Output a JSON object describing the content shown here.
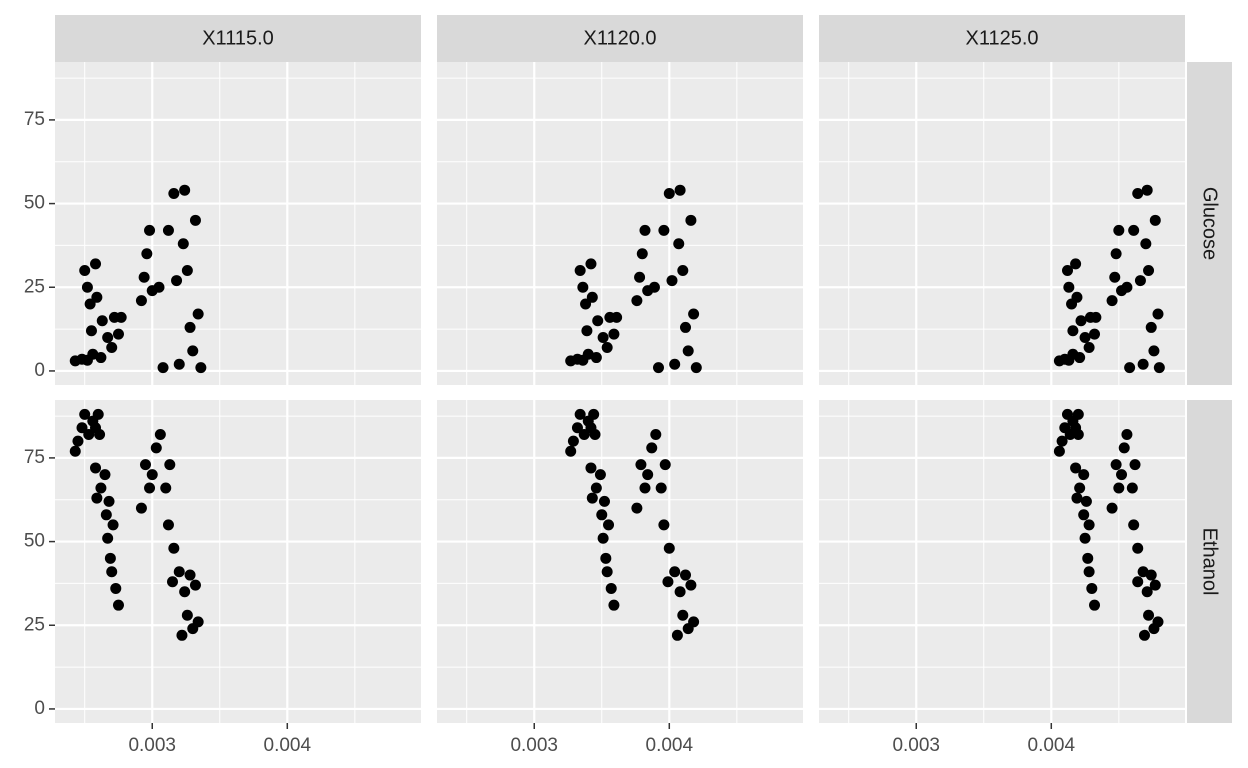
{
  "chart_data": {
    "type": "scatter",
    "col_labels": [
      "X1115.0",
      "X1120.0",
      "X1125.0"
    ],
    "row_labels": [
      "Glucose",
      "Ethanol"
    ],
    "color": "#000000",
    "xlim": [
      0.00228,
      0.00499
    ],
    "xticks": [
      0.003,
      0.004
    ],
    "xminor": [
      0.0025,
      0.0035,
      0.0045
    ],
    "ylim": [
      -4.2,
      92.3
    ],
    "yticks": [
      0,
      25,
      50,
      75
    ],
    "yminor": [
      12.5,
      37.5,
      62.5,
      87.5
    ],
    "grid": true,
    "panels": [
      [
        {
          "x": [
            0.00243,
            0.00248,
            0.00252,
            0.0025,
            0.00252,
            0.00254,
            0.00255,
            0.00256,
            0.00258,
            0.00259,
            0.00262,
            0.00263,
            0.00267,
            0.0027,
            0.00272,
            0.00275,
            0.00277,
            0.00292,
            0.00294,
            0.00296,
            0.00298,
            0.003,
            0.00305,
            0.00308,
            0.00312,
            0.00316,
            0.00318,
            0.0032,
            0.00323,
            0.00324,
            0.00326,
            0.00328,
            0.0033,
            0.00332,
            0.00334,
            0.00336
          ],
          "values": [
            3,
            3.5,
            3.2,
            30,
            25,
            20,
            12,
            5,
            32,
            22,
            4,
            15,
            10,
            7,
            16,
            11,
            16,
            21,
            28,
            35,
            42,
            24,
            25,
            1,
            42,
            53,
            27,
            2,
            38,
            54,
            30,
            13,
            6,
            45,
            17,
            1
          ]
        },
        {
          "x": [
            0.00327,
            0.00332,
            0.00336,
            0.00334,
            0.00336,
            0.00338,
            0.00339,
            0.0034,
            0.00342,
            0.00343,
            0.00346,
            0.00347,
            0.00351,
            0.00354,
            0.00356,
            0.00359,
            0.00361,
            0.00376,
            0.00378,
            0.0038,
            0.00382,
            0.00384,
            0.00389,
            0.00392,
            0.00396,
            0.004,
            0.00402,
            0.00404,
            0.00407,
            0.00408,
            0.0041,
            0.00412,
            0.00414,
            0.00416,
            0.00418,
            0.0042
          ],
          "values": [
            3,
            3.5,
            3.2,
            30,
            25,
            20,
            12,
            5,
            32,
            22,
            4,
            15,
            10,
            7,
            16,
            11,
            16,
            21,
            28,
            35,
            42,
            24,
            25,
            1,
            42,
            53,
            27,
            2,
            38,
            54,
            30,
            13,
            6,
            45,
            17,
            1
          ]
        },
        {
          "x": [
            0.00406,
            0.0041,
            0.00413,
            0.00412,
            0.00413,
            0.00415,
            0.00416,
            0.00416,
            0.00418,
            0.00419,
            0.00421,
            0.00422,
            0.00425,
            0.00428,
            0.00429,
            0.00432,
            0.00433,
            0.00445,
            0.00447,
            0.00448,
            0.0045,
            0.00452,
            0.00456,
            0.00458,
            0.00461,
            0.00464,
            0.00466,
            0.00468,
            0.0047,
            0.00471,
            0.00472,
            0.00474,
            0.00476,
            0.00477,
            0.00479,
            0.0048
          ],
          "values": [
            3,
            3.5,
            3.2,
            30,
            25,
            20,
            12,
            5,
            32,
            22,
            4,
            15,
            10,
            7,
            16,
            11,
            16,
            21,
            28,
            35,
            42,
            24,
            25,
            1,
            42,
            53,
            27,
            2,
            38,
            54,
            30,
            13,
            6,
            45,
            17,
            1
          ]
        }
      ],
      [
        {
          "x": [
            0.00243,
            0.00245,
            0.00248,
            0.0025,
            0.00253,
            0.00256,
            0.00258,
            0.0026,
            0.00261,
            0.00258,
            0.00259,
            0.00262,
            0.00265,
            0.00266,
            0.00267,
            0.00268,
            0.00269,
            0.0027,
            0.00271,
            0.00273,
            0.00275,
            0.00292,
            0.00295,
            0.00298,
            0.003,
            0.00303,
            0.00306,
            0.0031,
            0.00313,
            0.00312,
            0.00315,
            0.00316,
            0.0032,
            0.00322,
            0.00324,
            0.00326,
            0.00328,
            0.0033,
            0.00332,
            0.00334
          ],
          "values": [
            77,
            80,
            84,
            88,
            82,
            86,
            84,
            88,
            82,
            72,
            63,
            66,
            70,
            58,
            51,
            62,
            45,
            41,
            55,
            36,
            31,
            60,
            73,
            66,
            70,
            78,
            82,
            66,
            73,
            55,
            38,
            48,
            41,
            22,
            35,
            28,
            40,
            24,
            37,
            26
          ]
        },
        {
          "x": [
            0.00327,
            0.00329,
            0.00332,
            0.00334,
            0.00337,
            0.0034,
            0.00342,
            0.00344,
            0.00345,
            0.00342,
            0.00343,
            0.00346,
            0.00349,
            0.0035,
            0.00351,
            0.00352,
            0.00353,
            0.00354,
            0.00355,
            0.00357,
            0.00359,
            0.00376,
            0.00379,
            0.00382,
            0.00384,
            0.00387,
            0.0039,
            0.00394,
            0.00397,
            0.00396,
            0.00399,
            0.004,
            0.00404,
            0.00406,
            0.00408,
            0.0041,
            0.00412,
            0.00414,
            0.00416,
            0.00418
          ],
          "values": [
            77,
            80,
            84,
            88,
            82,
            86,
            84,
            88,
            82,
            72,
            63,
            66,
            70,
            58,
            51,
            62,
            45,
            41,
            55,
            36,
            31,
            60,
            73,
            66,
            70,
            78,
            82,
            66,
            73,
            55,
            38,
            48,
            41,
            22,
            35,
            28,
            40,
            24,
            37,
            26
          ]
        },
        {
          "x": [
            0.00406,
            0.00408,
            0.0041,
            0.00412,
            0.00414,
            0.00416,
            0.00418,
            0.0042,
            0.0042,
            0.00418,
            0.00419,
            0.00421,
            0.00424,
            0.00424,
            0.00425,
            0.00426,
            0.00427,
            0.00428,
            0.00428,
            0.0043,
            0.00432,
            0.00445,
            0.00448,
            0.0045,
            0.00452,
            0.00454,
            0.00456,
            0.0046,
            0.00462,
            0.00461,
            0.00464,
            0.00464,
            0.00468,
            0.00469,
            0.00471,
            0.00472,
            0.00474,
            0.00476,
            0.00477,
            0.00479
          ],
          "values": [
            77,
            80,
            84,
            88,
            82,
            86,
            84,
            88,
            82,
            72,
            63,
            66,
            70,
            58,
            51,
            62,
            45,
            41,
            55,
            36,
            31,
            60,
            73,
            66,
            70,
            78,
            82,
            66,
            73,
            55,
            38,
            48,
            41,
            22,
            35,
            28,
            40,
            24,
            37,
            26
          ]
        }
      ]
    ]
  }
}
